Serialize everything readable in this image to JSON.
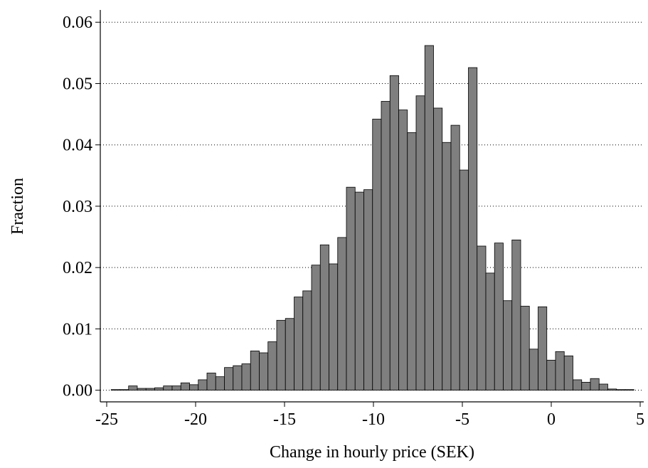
{
  "chart_data": {
    "type": "histogram",
    "x_label": "Change in hourly price (SEK)",
    "y_label": "Fraction",
    "color": "#7f7f7f",
    "bins": [
      -24.75,
      -24.26,
      -23.77,
      -23.28,
      -22.79,
      -22.3,
      -21.81,
      -21.32,
      -20.83,
      -20.34,
      -19.85,
      -19.36,
      -18.87,
      -18.38,
      -17.89,
      -17.4,
      -16.91,
      -16.42,
      -15.93,
      -15.44,
      -14.95,
      -14.46,
      -13.97,
      -13.48,
      -12.99,
      -12.5,
      -12.01,
      -11.52,
      -11.03,
      -10.54,
      -10.05,
      -9.56,
      -9.07,
      -8.58,
      -8.09,
      -7.6,
      -7.11,
      -6.62,
      -6.13,
      -5.64,
      -5.15,
      -4.66,
      -4.17,
      -3.68,
      -3.19,
      -2.7,
      -2.21,
      -1.72,
      -1.23,
      -0.74,
      -0.25,
      0.24,
      0.73,
      1.22,
      1.71,
      2.2,
      2.69,
      3.18,
      3.67,
      4.16,
      4.65
    ],
    "values": [
      0.0001,
      0.0001,
      0.0007,
      0.0003,
      0.0003,
      0.0004,
      0.0007,
      0.0007,
      0.0012,
      0.0009,
      0.0017,
      0.0028,
      0.0022,
      0.0037,
      0.004,
      0.0043,
      0.0064,
      0.0061,
      0.0079,
      0.0114,
      0.0117,
      0.0152,
      0.0162,
      0.0204,
      0.0237,
      0.0206,
      0.0249,
      0.0331,
      0.0323,
      0.0327,
      0.0442,
      0.0471,
      0.0513,
      0.0457,
      0.042,
      0.048,
      0.0562,
      0.046,
      0.0404,
      0.0432,
      0.0359,
      0.0526,
      0.0235,
      0.0191,
      0.024,
      0.0146,
      0.0245,
      0.0137,
      0.0067,
      0.0136,
      0.0049,
      0.0063,
      0.0056,
      0.0017,
      0.0013,
      0.0019,
      0.001,
      0.0002,
      0.0001,
      0.0001
    ],
    "xlim": [
      -25.36,
      5.2
    ],
    "ylim": [
      -0.0019,
      0.062
    ],
    "xticks": [
      -25,
      -20,
      -15,
      -10,
      -5,
      0,
      5
    ],
    "yticks": [
      {
        "value": 0,
        "label": "0.00"
      },
      {
        "value": 0.01,
        "label": "0.01"
      },
      {
        "value": 0.02,
        "label": "0.02"
      },
      {
        "value": 0.03,
        "label": "0.03"
      },
      {
        "value": 0.04,
        "label": "0.04"
      },
      {
        "value": 0.05,
        "label": "0.05"
      },
      {
        "value": 0.06,
        "label": "0.06"
      }
    ],
    "grid": true
  }
}
